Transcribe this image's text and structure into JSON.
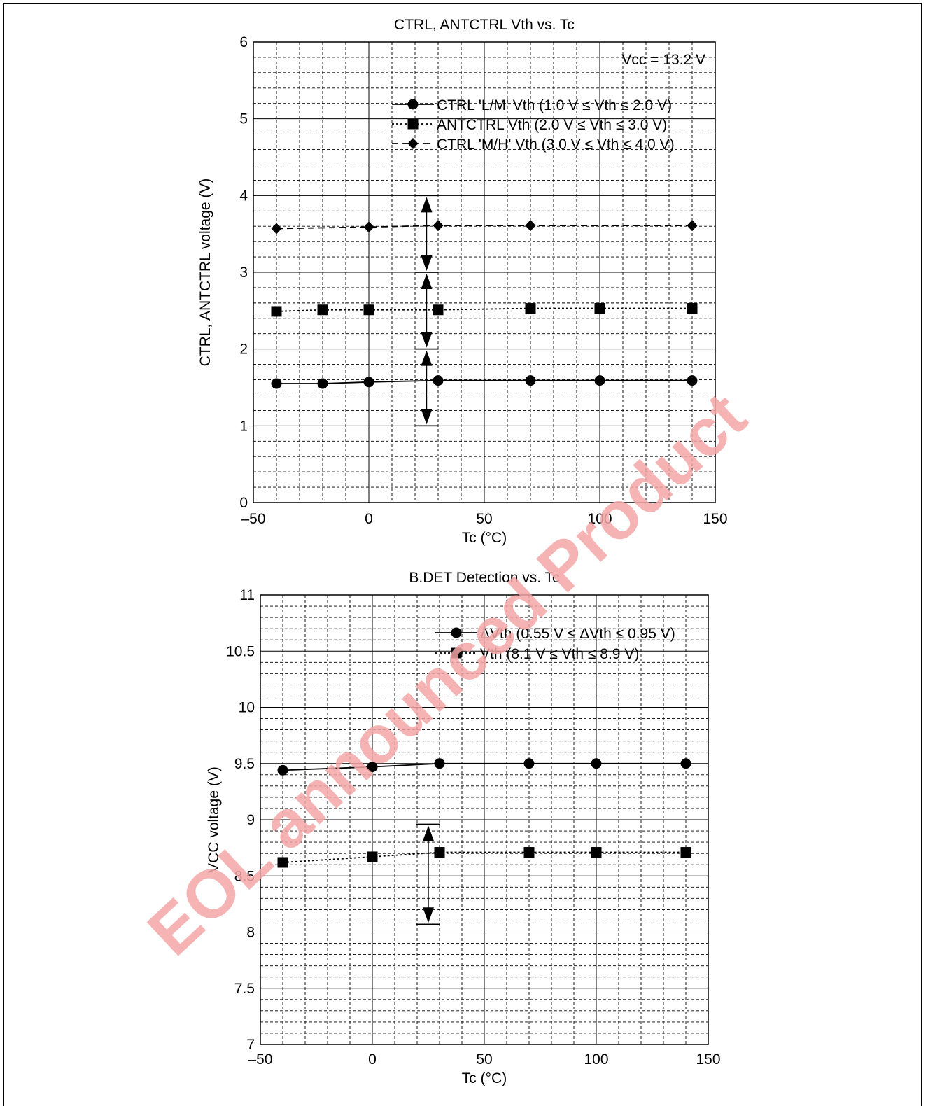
{
  "watermark": {
    "text": "EOL announced Product",
    "color": "#f4a6a6"
  },
  "chart_data": [
    {
      "type": "line",
      "title": "CTRL, ANTCTRL Vth vs. Tc",
      "xlabel": "Tc   (°C)",
      "ylabel": "CTRL, ANTCTRL voltage   (V)",
      "xlim": [
        -50,
        150
      ],
      "ylim": [
        0,
        6
      ],
      "x_ticks": [
        "–50",
        "0",
        "50",
        "100",
        "150"
      ],
      "y_ticks": [
        "0",
        "1",
        "2",
        "3",
        "4",
        "5",
        "6"
      ],
      "grid": true,
      "annotation": "Vcc = 13.2 V",
      "legend_position": "top-right",
      "series": [
        {
          "name": "CTRL 'L/M' Vth (1.0 V ≤ Vth ≤ 2.0 V)",
          "marker": "circle",
          "line": "solid",
          "x": [
            -40,
            -20,
            0,
            30,
            70,
            100,
            140
          ],
          "y": [
            1.55,
            1.55,
            1.57,
            1.59,
            1.59,
            1.59,
            1.59
          ]
        },
        {
          "name": "ANTCTRL Vth (2.0 V ≤ Vth ≤ 3.0 V)",
          "marker": "square",
          "line": "dotted",
          "x": [
            -40,
            -20,
            0,
            30,
            70,
            100,
            140
          ],
          "y": [
            2.49,
            2.51,
            2.51,
            2.51,
            2.53,
            2.53,
            2.53
          ]
        },
        {
          "name": "CTRL 'M/H' Vth (3.0 V ≤ Vth ≤ 4.0 V)",
          "marker": "diamond",
          "line": "dashed",
          "x": [
            -40,
            0,
            30,
            70,
            140
          ],
          "y": [
            3.57,
            3.59,
            3.61,
            3.61,
            3.61
          ]
        }
      ],
      "spec_ranges": [
        {
          "x": 25,
          "from": 1.0,
          "to": 2.0
        },
        {
          "x": 25,
          "from": 2.0,
          "to": 3.0
        },
        {
          "x": 25,
          "from": 3.0,
          "to": 4.0
        }
      ]
    },
    {
      "type": "line",
      "title": "B.DET Detection vs. Tc",
      "xlabel": "Tc   (°C)",
      "ylabel": "VCC voltage   (V)",
      "xlim": [
        -50,
        150
      ],
      "ylim": [
        7,
        11
      ],
      "x_ticks": [
        "–50",
        "0",
        "50",
        "100",
        "150"
      ],
      "y_ticks": [
        "7",
        "7.5",
        "8",
        "8.5",
        "9",
        "9.5",
        "10",
        "10.5",
        "11"
      ],
      "grid": true,
      "legend_position": "top-right",
      "series": [
        {
          "name": "ΔVth (0.55 V ≤ ΔVth ≤ 0.95 V)",
          "marker": "circle",
          "line": "solid",
          "x": [
            -40,
            0,
            30,
            70,
            100,
            140
          ],
          "y": [
            9.44,
            9.47,
            9.5,
            9.5,
            9.5,
            9.5
          ]
        },
        {
          "name": "Vth (8.1 V ≤ Vth ≤ 8.9 V)",
          "marker": "square",
          "line": "dotted",
          "x": [
            -40,
            0,
            30,
            70,
            100,
            140
          ],
          "y": [
            8.62,
            8.67,
            8.71,
            8.71,
            8.71,
            8.71
          ]
        }
      ],
      "spec_ranges": [
        {
          "x": 25,
          "from": 8.07,
          "to": 8.96
        }
      ]
    }
  ]
}
